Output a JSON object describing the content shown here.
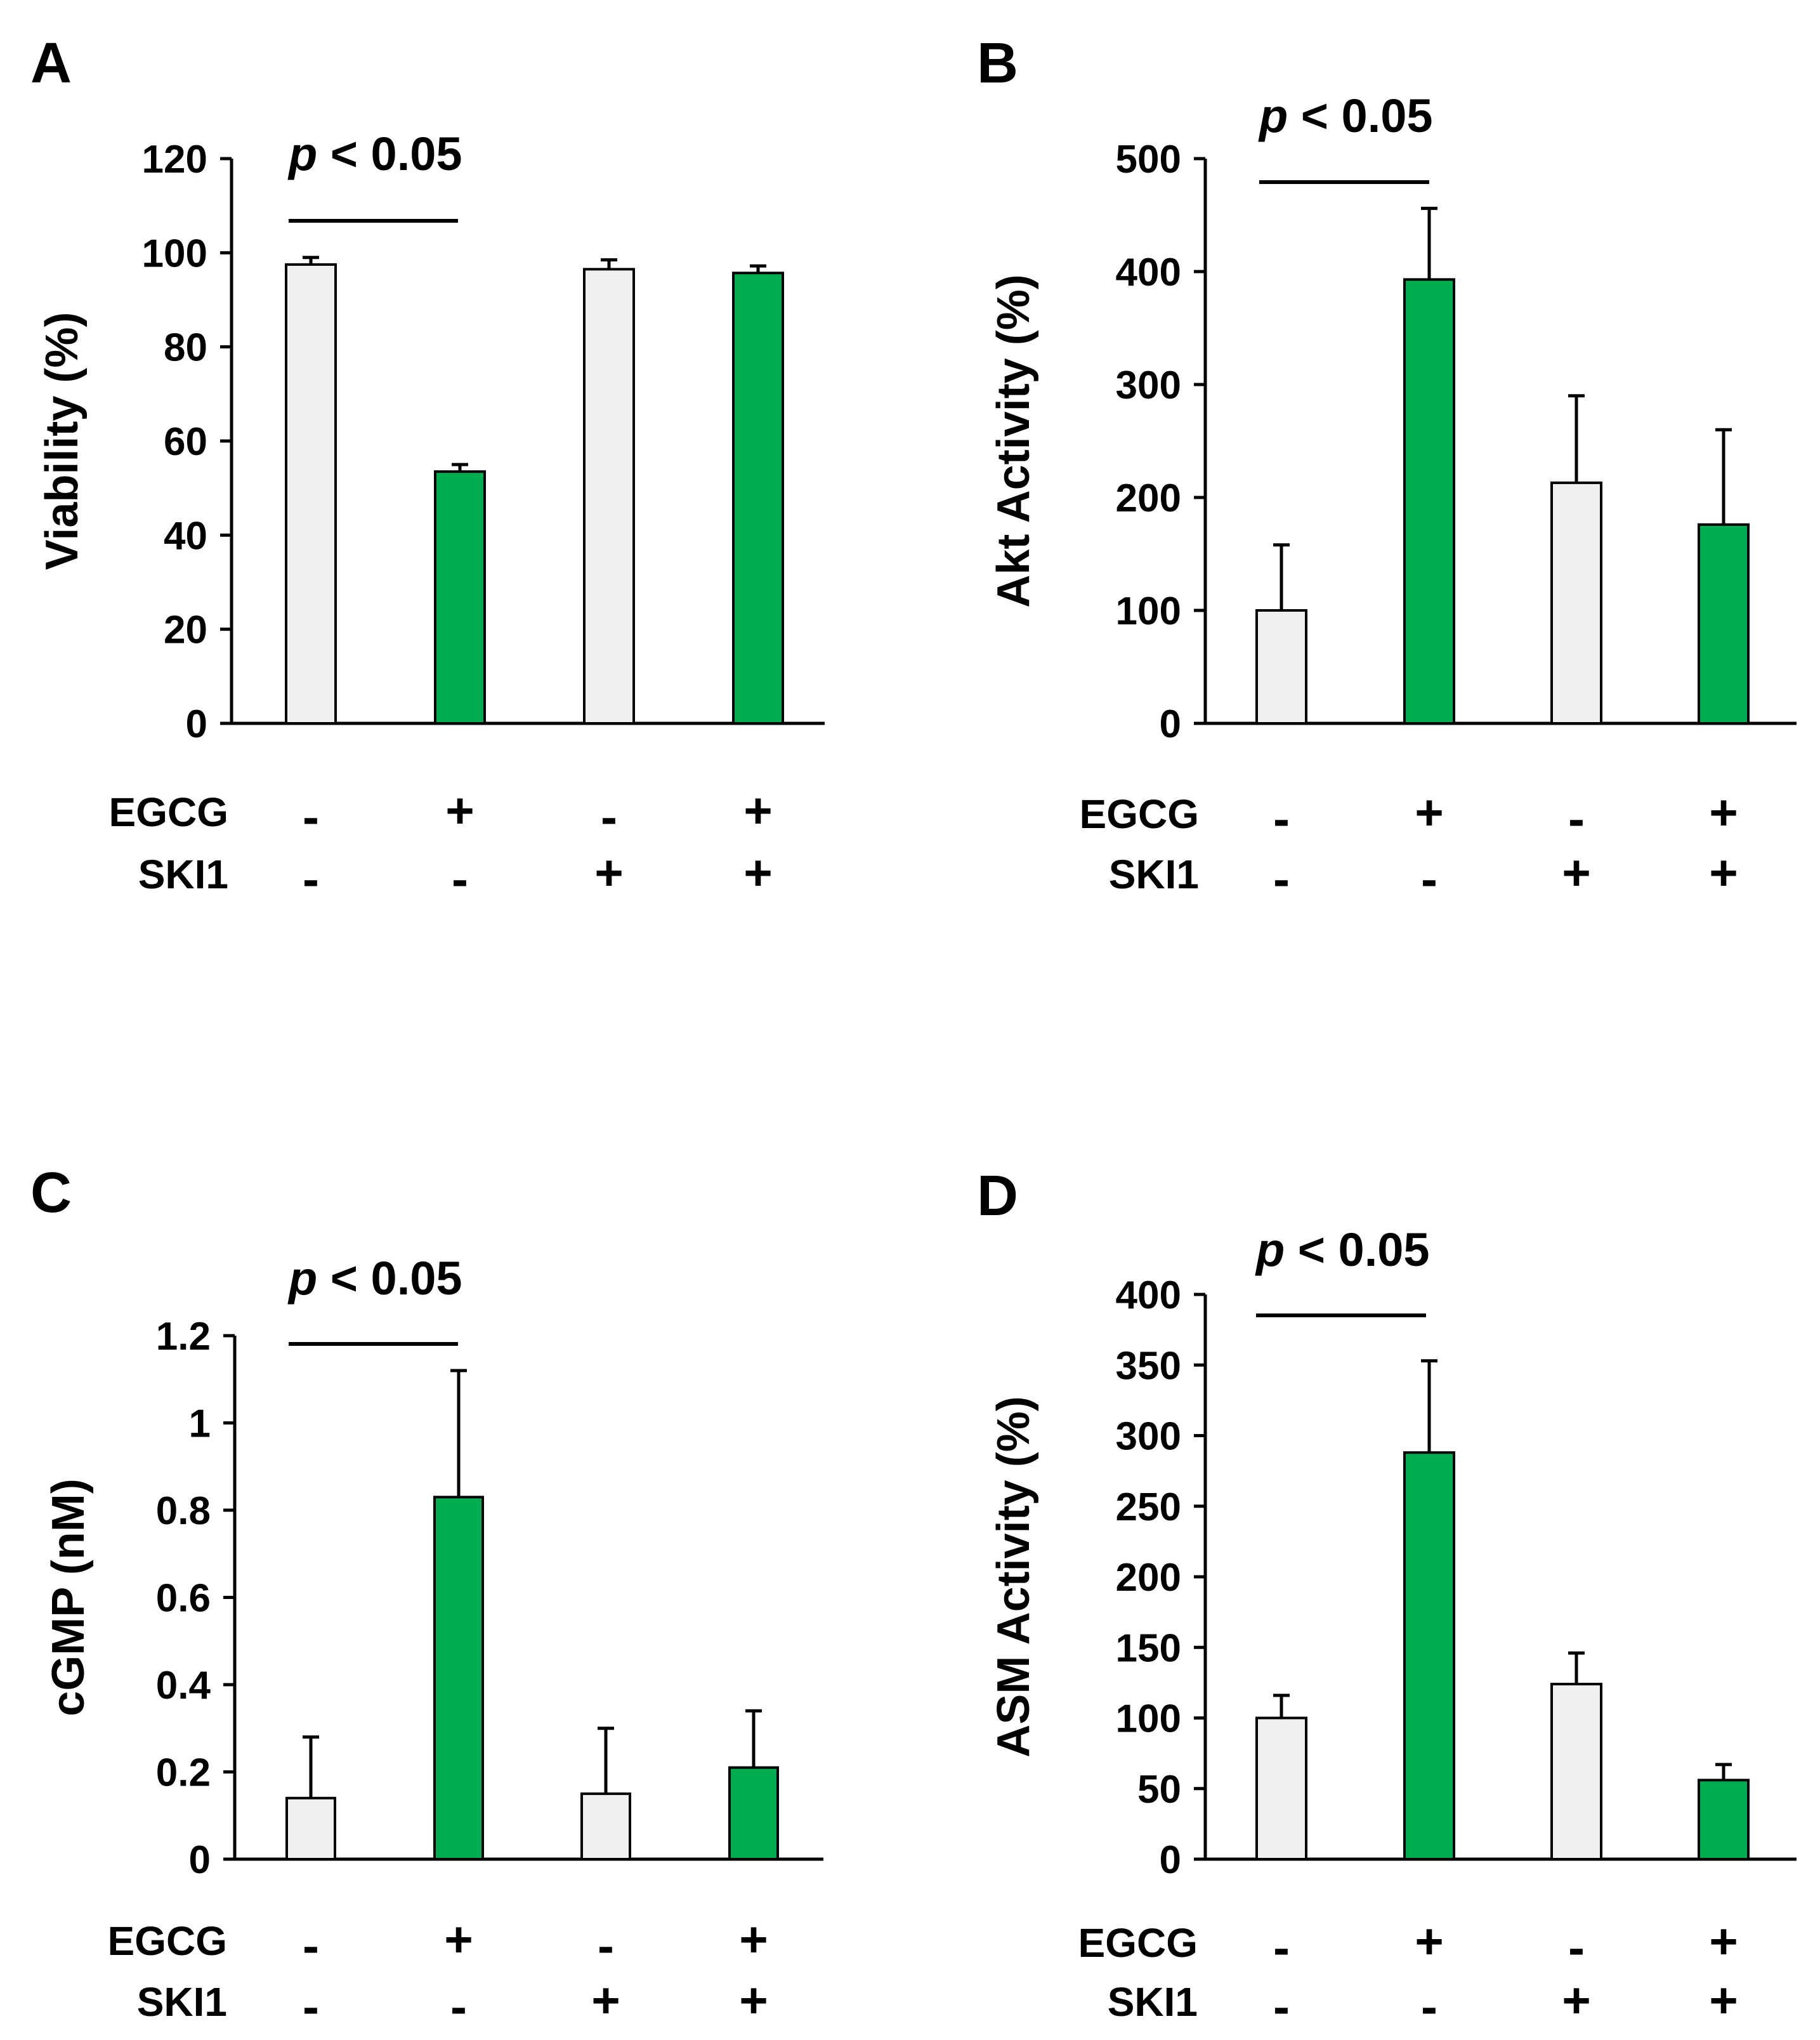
{
  "colors": {
    "gray_bar": "#f0f0f0",
    "green_bar": "#00ad4f",
    "ink": "#000000"
  },
  "chart_data": [
    {
      "panel": "A",
      "type": "bar",
      "ylabel": "Viability (%)",
      "ylim": [
        0,
        120
      ],
      "yticks": [
        "0",
        "20",
        "40",
        "60",
        "80",
        "100",
        "120"
      ],
      "values": [
        97.5,
        53.5,
        96.5,
        95.7
      ],
      "errors": [
        1.5,
        1.5,
        2.0,
        1.5
      ],
      "bar_colors": [
        "gray",
        "green",
        "gray",
        "green"
      ],
      "row_labels": [
        "EGCG",
        "SKI1"
      ],
      "conditions": [
        [
          "-",
          "+",
          "-",
          "+"
        ],
        [
          "-",
          "-",
          "+",
          "+"
        ]
      ],
      "annotation": {
        "p": "p",
        "rest": " < 0.05"
      }
    },
    {
      "panel": "B",
      "type": "bar",
      "ylabel": "Akt Activity (%)",
      "ylim": [
        0,
        500
      ],
      "yticks": [
        "0",
        "100",
        "200",
        "300",
        "400",
        "500"
      ],
      "values": [
        100,
        393,
        213,
        176
      ],
      "errors": [
        58,
        63,
        77,
        84
      ],
      "bar_colors": [
        "gray",
        "green",
        "gray",
        "green"
      ],
      "row_labels": [
        "EGCG",
        "SKI1"
      ],
      "conditions": [
        [
          "-",
          "+",
          "-",
          "+"
        ],
        [
          "-",
          "-",
          "+",
          "+"
        ]
      ],
      "annotation": {
        "p": "p",
        "rest": " < 0.05"
      }
    },
    {
      "panel": "C",
      "type": "bar",
      "ylabel": "cGMP (nM)",
      "ylim": [
        0,
        1.2
      ],
      "yticks": [
        "0",
        "0.2",
        "0.4",
        "0.6",
        "0.8",
        "1",
        "1.2"
      ],
      "values": [
        0.14,
        0.83,
        0.15,
        0.21
      ],
      "errors": [
        0.14,
        0.29,
        0.15,
        0.13
      ],
      "bar_colors": [
        "gray",
        "green",
        "gray",
        "green"
      ],
      "row_labels": [
        "EGCG",
        "SKI1"
      ],
      "conditions": [
        [
          "-",
          "+",
          "-",
          "+"
        ],
        [
          "-",
          "-",
          "+",
          "+"
        ]
      ],
      "annotation": {
        "p": "p",
        "rest": " < 0.05"
      }
    },
    {
      "panel": "D",
      "type": "bar",
      "ylabel": "ASM Activity (%)",
      "ylim": [
        0,
        400
      ],
      "yticks": [
        "0",
        "50",
        "100",
        "150",
        "200",
        "250",
        "300",
        "350",
        "400"
      ],
      "values": [
        100,
        288,
        124,
        56
      ],
      "errors": [
        16,
        65,
        22,
        11
      ],
      "bar_colors": [
        "gray",
        "green",
        "gray",
        "green"
      ],
      "row_labels": [
        "EGCG",
        "SKI1"
      ],
      "conditions": [
        [
          "-",
          "+",
          "-",
          "+"
        ],
        [
          "-",
          "-",
          "+",
          "+"
        ]
      ],
      "annotation": {
        "p": "p",
        "rest": " < 0.05"
      }
    }
  ]
}
